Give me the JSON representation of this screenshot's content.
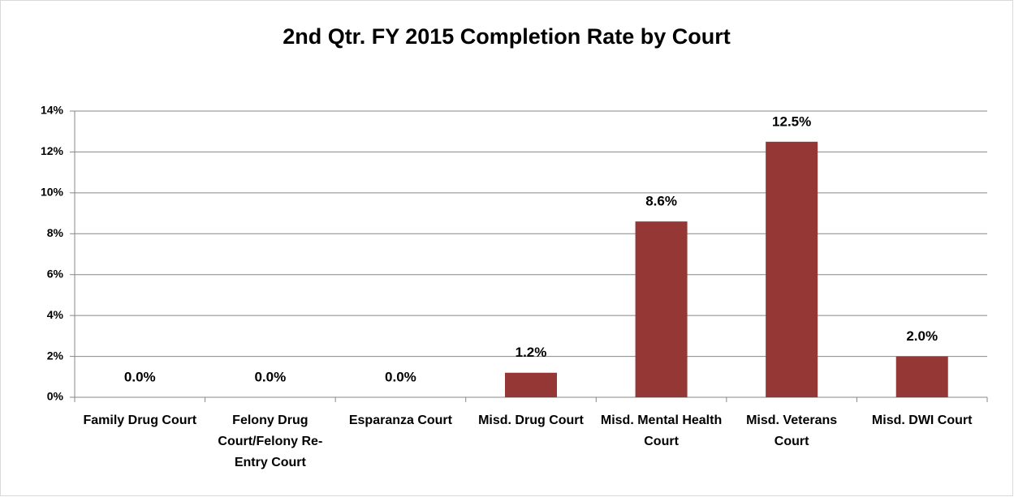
{
  "chart_data": {
    "type": "bar",
    "title": "2nd Qtr. FY 2015 Completion Rate by Court",
    "categories": [
      "Family Drug Court",
      "Felony Drug Court/Felony Re-Entry Court",
      "Esparanza Court",
      "Misd. Drug Court",
      "Misd. Mental Health Court",
      "Misd. Veterans Court",
      "Misd. DWI Court"
    ],
    "values": [
      0,
      0,
      0,
      1.2,
      8.6,
      12.5,
      2.0
    ],
    "value_labels": [
      "0.0%",
      "0.0%",
      "0.0%",
      "1.2%",
      "8.6%",
      "12.5%",
      "2.0%"
    ],
    "color": "#953735",
    "ylim": [
      0,
      14
    ],
    "yticks": [
      {
        "value": 0,
        "label": "0%"
      },
      {
        "value": 2,
        "label": "2%"
      },
      {
        "value": 4,
        "label": "4%"
      },
      {
        "value": 6,
        "label": "6%"
      },
      {
        "value": 8,
        "label": "8%"
      },
      {
        "value": 10,
        "label": "10%"
      },
      {
        "value": 12,
        "label": "12%"
      },
      {
        "value": 14,
        "label": "14%"
      }
    ],
    "grid": true
  }
}
